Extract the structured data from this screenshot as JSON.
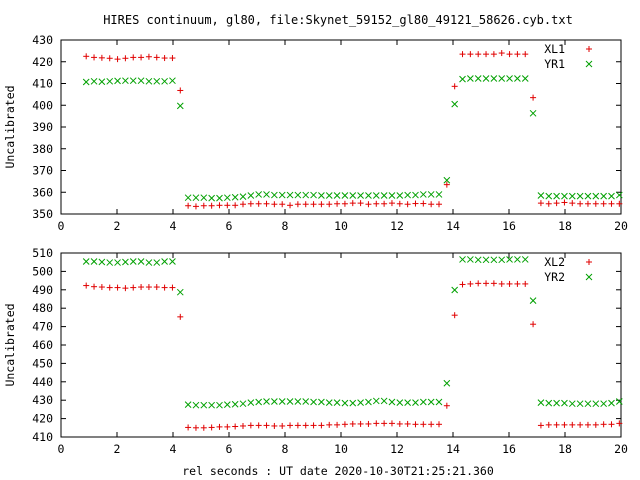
{
  "figure": {
    "title": "HIRES continuum, gl80, file:Skynet_59152_gl80_49121_58626.cyb.txt",
    "xlabel": "rel seconds : UT date 2020-10-30T21:25:21.360"
  },
  "colors": {
    "xl": "#e00000",
    "yr": "#00a000",
    "axis": "#000000"
  },
  "chart_data": [
    {
      "type": "scatter",
      "ylabel": "Uncalibrated",
      "xlim": [
        0,
        20
      ],
      "ylim": [
        350,
        430
      ],
      "xticks": [
        0,
        2,
        4,
        6,
        8,
        10,
        12,
        14,
        16,
        18,
        20
      ],
      "yticks": [
        350,
        360,
        370,
        380,
        390,
        400,
        410,
        420,
        430
      ],
      "grid": false,
      "legend": "top-right",
      "series": [
        {
          "name": "XL1",
          "marker": "plus",
          "color": "#e00000",
          "x": [
            0.9,
            1.18,
            1.46,
            1.74,
            2.02,
            2.3,
            2.58,
            2.86,
            3.14,
            3.42,
            3.7,
            3.98,
            4.26,
            4.54,
            4.82,
            5.1,
            5.38,
            5.66,
            5.94,
            6.22,
            6.5,
            6.78,
            7.06,
            7.34,
            7.62,
            7.9,
            8.18,
            8.46,
            8.74,
            9.02,
            9.3,
            9.58,
            9.86,
            10.14,
            10.42,
            10.7,
            10.98,
            11.26,
            11.54,
            11.82,
            12.1,
            12.38,
            12.66,
            12.94,
            13.22,
            13.5,
            13.78,
            14.06,
            14.34,
            14.62,
            14.9,
            15.18,
            15.46,
            15.74,
            16.02,
            16.3,
            16.58,
            16.86,
            17.14,
            17.42,
            17.7,
            17.98,
            18.26,
            18.54,
            18.82,
            19.1,
            19.38,
            19.66,
            19.94
          ],
          "y": [
            422.5,
            422,
            421.8,
            421.6,
            421.2,
            421.6,
            422,
            422,
            422.3,
            422,
            421.7,
            421.7,
            406.8,
            353.8,
            353.5,
            353.8,
            353.8,
            354,
            354,
            354,
            354.5,
            354.7,
            354.7,
            354.7,
            354.5,
            354.5,
            354,
            354.5,
            354.5,
            354.5,
            354.5,
            354.5,
            354.7,
            354.7,
            355,
            355,
            354.5,
            354.7,
            354.7,
            355,
            354.7,
            354.5,
            354.8,
            354.8,
            354.5,
            354.5,
            363.5,
            408.7,
            423.5,
            423.5,
            423.5,
            423.5,
            423.5,
            424,
            423.5,
            423.5,
            423.5,
            403.5,
            355,
            354.7,
            355,
            355.3,
            355,
            354.7,
            354.7,
            354.7,
            354.7,
            354.7,
            354.7
          ]
        },
        {
          "name": "YR1",
          "marker": "cross",
          "color": "#00a000",
          "x": [
            0.9,
            1.18,
            1.46,
            1.74,
            2.02,
            2.3,
            2.58,
            2.86,
            3.14,
            3.42,
            3.7,
            3.98,
            4.26,
            4.54,
            4.82,
            5.1,
            5.38,
            5.66,
            5.94,
            6.22,
            6.5,
            6.78,
            7.06,
            7.34,
            7.62,
            7.9,
            8.18,
            8.46,
            8.74,
            9.02,
            9.3,
            9.58,
            9.86,
            10.14,
            10.42,
            10.7,
            10.98,
            11.26,
            11.54,
            11.82,
            12.1,
            12.38,
            12.66,
            12.94,
            13.22,
            13.5,
            13.78,
            14.06,
            14.34,
            14.62,
            14.9,
            15.18,
            15.46,
            15.74,
            16.02,
            16.3,
            16.58,
            16.86,
            17.14,
            17.42,
            17.7,
            17.98,
            18.26,
            18.54,
            18.82,
            19.1,
            19.38,
            19.66,
            19.94
          ],
          "y": [
            410.7,
            411,
            410.8,
            411,
            411.2,
            411.3,
            411.3,
            411.3,
            411,
            411,
            411,
            411.3,
            399.7,
            357.5,
            357.5,
            357.5,
            357.3,
            357.3,
            357.5,
            357.7,
            358,
            358.5,
            359,
            359,
            358.7,
            358.7,
            358.7,
            358.7,
            358.7,
            358.7,
            358.5,
            358.5,
            358.5,
            358.5,
            358.5,
            358.5,
            358.5,
            358.5,
            358.5,
            358.5,
            358.5,
            358.7,
            358.7,
            359,
            359,
            359,
            365.5,
            400.5,
            412,
            412.3,
            412.3,
            412.3,
            412.3,
            412.3,
            412.3,
            412.3,
            412.3,
            396.3,
            358.5,
            358.2,
            358.2,
            358.2,
            358.2,
            358.2,
            358.2,
            358.2,
            358.2,
            358.2,
            358.7
          ]
        }
      ]
    },
    {
      "type": "scatter",
      "ylabel": "Uncalibrated",
      "xlim": [
        0,
        20
      ],
      "ylim": [
        410,
        510
      ],
      "xticks": [
        0,
        2,
        4,
        6,
        8,
        10,
        12,
        14,
        16,
        18,
        20
      ],
      "yticks": [
        410,
        420,
        430,
        440,
        450,
        460,
        470,
        480,
        490,
        500,
        510
      ],
      "grid": false,
      "legend": "top-right",
      "series": [
        {
          "name": "XL2",
          "marker": "plus",
          "color": "#e00000",
          "x": [
            0.9,
            1.18,
            1.46,
            1.74,
            2.02,
            2.3,
            2.58,
            2.86,
            3.14,
            3.42,
            3.7,
            3.98,
            4.26,
            4.54,
            4.82,
            5.1,
            5.38,
            5.66,
            5.94,
            6.22,
            6.5,
            6.78,
            7.06,
            7.34,
            7.62,
            7.9,
            8.18,
            8.46,
            8.74,
            9.02,
            9.3,
            9.58,
            9.86,
            10.14,
            10.42,
            10.7,
            10.98,
            11.26,
            11.54,
            11.82,
            12.1,
            12.38,
            12.66,
            12.94,
            13.22,
            13.5,
            13.78,
            14.06,
            14.34,
            14.62,
            14.9,
            15.18,
            15.46,
            15.74,
            16.02,
            16.3,
            16.58,
            16.86,
            17.14,
            17.42,
            17.7,
            17.98,
            18.26,
            18.54,
            18.82,
            19.1,
            19.38,
            19.66,
            19.94
          ],
          "y": [
            492.3,
            491.7,
            491.5,
            491.2,
            491.2,
            490.9,
            491.2,
            491.5,
            491.5,
            491.5,
            491.2,
            491.2,
            475.3,
            415.2,
            415,
            415,
            415.2,
            415.5,
            415.5,
            415.7,
            416,
            416.3,
            416.3,
            416.3,
            416,
            416,
            416.3,
            416.3,
            416.3,
            416.3,
            416.3,
            416.6,
            416.6,
            416.9,
            417.1,
            417.1,
            417.1,
            417.4,
            417.4,
            417.4,
            417.1,
            417.1,
            416.9,
            416.9,
            416.9,
            416.9,
            427,
            476.2,
            492.9,
            493.2,
            493.5,
            493.5,
            493.5,
            493.2,
            493.2,
            493.2,
            493.2,
            471.3,
            416.3,
            416.6,
            416.6,
            416.6,
            416.6,
            416.6,
            416.6,
            416.6,
            416.9,
            416.9,
            417.4
          ]
        },
        {
          "name": "YR2",
          "marker": "cross",
          "color": "#00a000",
          "x": [
            0.9,
            1.18,
            1.46,
            1.74,
            2.02,
            2.3,
            2.58,
            2.86,
            3.14,
            3.42,
            3.7,
            3.98,
            4.26,
            4.54,
            4.82,
            5.1,
            5.38,
            5.66,
            5.94,
            6.22,
            6.5,
            6.78,
            7.06,
            7.34,
            7.62,
            7.9,
            8.18,
            8.46,
            8.74,
            9.02,
            9.3,
            9.58,
            9.86,
            10.14,
            10.42,
            10.7,
            10.98,
            11.26,
            11.54,
            11.82,
            12.1,
            12.38,
            12.66,
            12.94,
            13.22,
            13.5,
            13.78,
            14.06,
            14.34,
            14.62,
            14.9,
            15.18,
            15.46,
            15.74,
            16.02,
            16.3,
            16.58,
            16.86,
            17.14,
            17.42,
            17.7,
            17.98,
            18.26,
            18.54,
            18.82,
            19.1,
            19.38,
            19.66,
            19.94
          ],
          "y": [
            505.4,
            505.4,
            505.1,
            504.8,
            504.8,
            505.1,
            505.4,
            505.4,
            504.8,
            504.8,
            505.4,
            505.4,
            488.7,
            427.6,
            427.3,
            427.3,
            427.3,
            427.3,
            427.6,
            427.8,
            428.1,
            428.7,
            429,
            429.3,
            429.3,
            429.3,
            429.3,
            429.3,
            429.3,
            429,
            429,
            428.7,
            428.7,
            428.4,
            428.4,
            428.7,
            429,
            429.6,
            429.6,
            429,
            428.7,
            428.7,
            428.7,
            429,
            429,
            429,
            439.2,
            489.9,
            506.5,
            506.5,
            506.3,
            506.3,
            506.3,
            506.3,
            506.5,
            506.5,
            506.5,
            484.1,
            428.7,
            428.4,
            428.4,
            428.4,
            428.1,
            428.1,
            428.1,
            428.1,
            428.1,
            428.4,
            429.3
          ]
        }
      ]
    }
  ]
}
